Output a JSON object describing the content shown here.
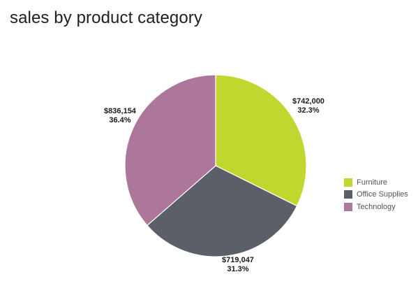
{
  "chart_data": {
    "type": "pie",
    "title": "sales by product category",
    "start_angle_deg": 0,
    "direction": "clockwise",
    "slices": [
      {
        "name": "Furniture",
        "value": 742000,
        "value_label": "$742,000",
        "percent_label": "32.3%",
        "color": "#c1d72f"
      },
      {
        "name": "Office Supplies",
        "value": 719047,
        "value_label": "$719,047",
        "percent_label": "31.3%",
        "color": "#5b5f67"
      },
      {
        "name": "Technology",
        "value": 836154,
        "value_label": "$836,154",
        "percent_label": "36.4%",
        "color": "#ad779c"
      }
    ],
    "legend": {
      "position": "right",
      "items": [
        {
          "label": "Furniture",
          "color": "#c1d72f"
        },
        {
          "label": "Office Supplies",
          "color": "#5b5f67"
        },
        {
          "label": "Technology",
          "color": "#ad779c"
        }
      ]
    }
  }
}
